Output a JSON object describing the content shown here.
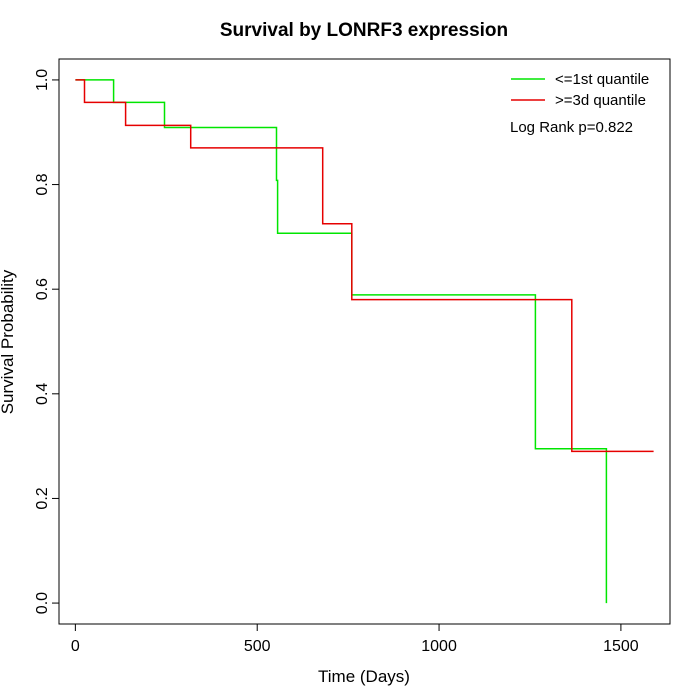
{
  "chart_data": {
    "type": "line",
    "title": "Survival by LONRF3 expression",
    "xlabel": "Time (Days)",
    "ylabel": "Survival Probability",
    "xlim": [
      0,
      1650
    ],
    "ylim": [
      0,
      1.0
    ],
    "x_ticks": [
      "0",
      "500",
      "1000",
      "1500"
    ],
    "x_tick_values": [
      0,
      500,
      1000,
      1500
    ],
    "y_ticks": [
      "0.0",
      "0.2",
      "0.4",
      "0.6",
      "0.8",
      "1.0"
    ],
    "y_tick_values": [
      0,
      0.2,
      0.4,
      0.6,
      0.8,
      1.0
    ],
    "grid": false,
    "legend_position": "top-right",
    "annotation": "Log Rank p=0.822",
    "series": [
      {
        "name": "<=1st quantile",
        "color": "#00e600",
        "points": [
          [
            0,
            1.0
          ],
          [
            105,
            1.0
          ],
          [
            105,
            0.957
          ],
          [
            245,
            0.957
          ],
          [
            245,
            0.909
          ],
          [
            553,
            0.909
          ],
          [
            553,
            0.808
          ],
          [
            556,
            0.808
          ],
          [
            556,
            0.707
          ],
          [
            760,
            0.707
          ],
          [
            760,
            0.589
          ],
          [
            1265,
            0.589
          ],
          [
            1265,
            0.295
          ],
          [
            1460,
            0.295
          ],
          [
            1460,
            0.0
          ]
        ]
      },
      {
        "name": ">=3d quantile",
        "color": "#e60000",
        "points": [
          [
            0,
            1.0
          ],
          [
            25,
            1.0
          ],
          [
            25,
            0.957
          ],
          [
            138,
            0.957
          ],
          [
            138,
            0.913
          ],
          [
            317,
            0.913
          ],
          [
            317,
            0.87
          ],
          [
            680,
            0.87
          ],
          [
            680,
            0.725
          ],
          [
            760,
            0.725
          ],
          [
            760,
            0.58
          ],
          [
            1365,
            0.58
          ],
          [
            1365,
            0.29
          ],
          [
            1590,
            0.29
          ]
        ]
      }
    ]
  }
}
